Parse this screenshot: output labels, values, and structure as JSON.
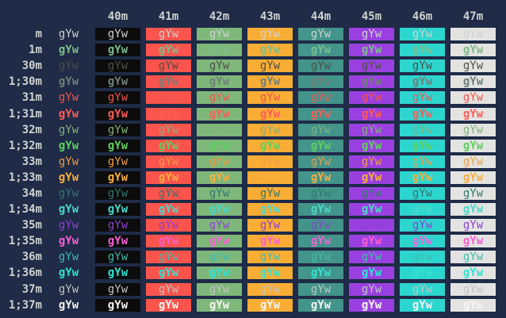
{
  "terminal": {
    "description": "ANSI terminal color test grid showing 'gYw' in each foreground/background combination",
    "cell_text": "gYw",
    "colors": {
      "terminal_background": "#1f2b47",
      "header_text": "#ced3d0",
      "row_label_text": "#ced3d0"
    },
    "columns": [
      {
        "label": "40m",
        "bg": "#0c0c0c"
      },
      {
        "label": "41m",
        "bg": "#fa544d"
      },
      {
        "label": "42m",
        "bg": "#7eb77a"
      },
      {
        "label": "43m",
        "bg": "#f9ad35"
      },
      {
        "label": "44m",
        "bg": "#43948a"
      },
      {
        "label": "45m",
        "bg": "#9a40e0"
      },
      {
        "label": "46m",
        "bg": "#2dd5cf"
      },
      {
        "label": "47m",
        "bg": "#e3e4e1"
      }
    ],
    "rows": [
      {
        "label": "m",
        "fg": "#ced3d0",
        "bold": false
      },
      {
        "label": "1m",
        "fg": "#7dbc8c",
        "bold": true
      },
      {
        "label": "30m",
        "fg": "#4d5046",
        "bold": false
      },
      {
        "label": "1;30m",
        "fg": "#6f8078",
        "bold": true
      },
      {
        "label": "31m",
        "fg": "#f0564f",
        "bold": false
      },
      {
        "label": "1;31m",
        "fg": "#ff5c57",
        "bold": true
      },
      {
        "label": "32m",
        "fg": "#83b07c",
        "bold": false
      },
      {
        "label": "1;32m",
        "fg": "#5fd05e",
        "bold": true
      },
      {
        "label": "33m",
        "fg": "#ef9e44",
        "bold": false
      },
      {
        "label": "1;33m",
        "fg": "#f9ae3c",
        "bold": true
      },
      {
        "label": "34m",
        "fg": "#31776d",
        "bold": false
      },
      {
        "label": "1;34m",
        "fg": "#49d8c9",
        "bold": true
      },
      {
        "label": "35m",
        "fg": "#8b41d0",
        "bold": false
      },
      {
        "label": "1;35m",
        "fg": "#f95fd5",
        "bold": true
      },
      {
        "label": "36m",
        "fg": "#3fbcac",
        "bold": false
      },
      {
        "label": "1;36m",
        "fg": "#2ee4d2",
        "bold": true
      },
      {
        "label": "37m",
        "fg": "#bfc5c1",
        "bold": false
      },
      {
        "label": "1;37m",
        "fg": "#f4f5f0",
        "bold": true
      }
    ]
  }
}
